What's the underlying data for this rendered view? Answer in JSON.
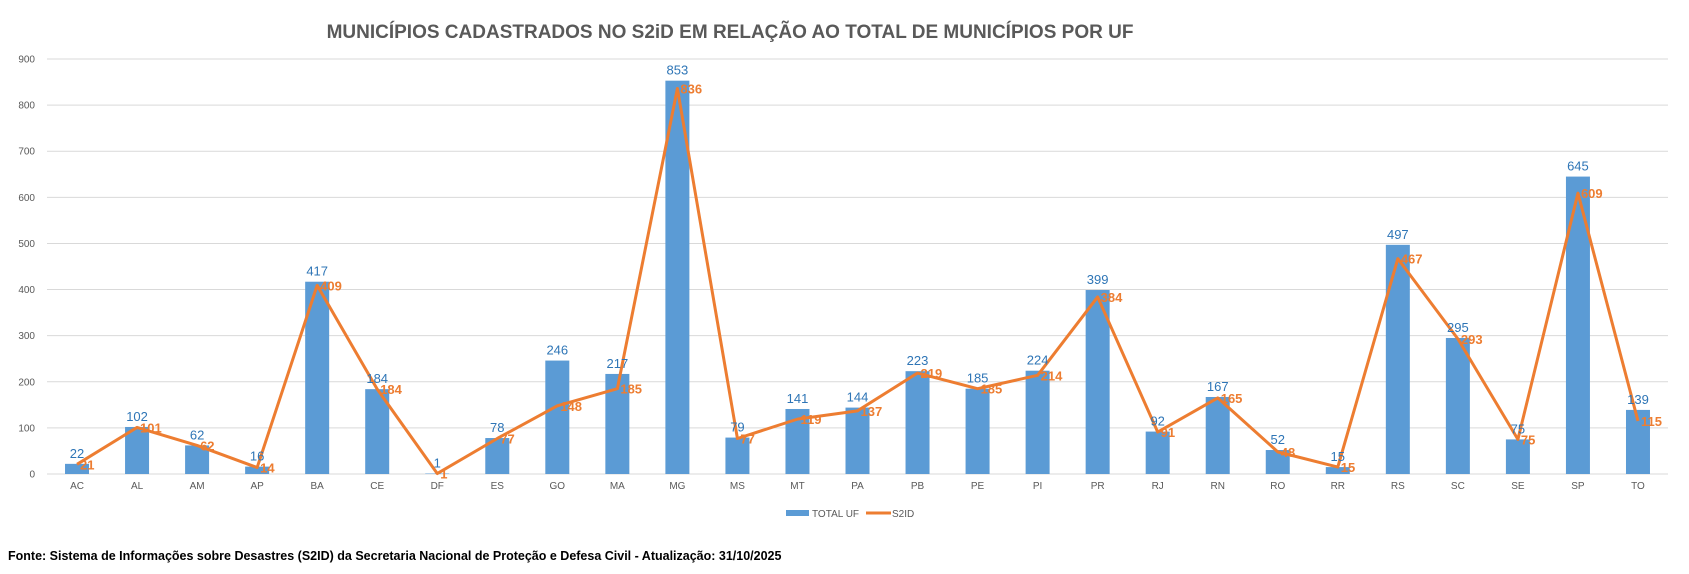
{
  "chart_data": {
    "type": "bar+line",
    "title": "MUNICÍPIOS CADASTRADOS NO S2iD EM RELAÇÃO AO TOTAL DE MUNICÍPIOS POR UF",
    "xlabel": "",
    "ylabel": "",
    "ylim": [
      0,
      900
    ],
    "yticks": [
      0,
      100,
      200,
      300,
      400,
      500,
      600,
      700,
      800,
      900
    ],
    "grid": true,
    "legend_position": "bottom",
    "categories": [
      "AC",
      "AL",
      "AM",
      "AP",
      "BA",
      "CE",
      "DF",
      "ES",
      "GO",
      "MA",
      "MG",
      "MS",
      "MT",
      "PA",
      "PB",
      "PE",
      "PI",
      "PR",
      "RJ",
      "RN",
      "RO",
      "RR",
      "RS",
      "SC",
      "SE",
      "SP",
      "TO"
    ],
    "series": [
      {
        "name": "TOTAL UF",
        "type": "bar",
        "color": "#5B9BD5",
        "label_color": "#2E75B6",
        "values": [
          22,
          102,
          62,
          16,
          417,
          184,
          1,
          78,
          246,
          217,
          853,
          79,
          141,
          144,
          223,
          185,
          224,
          399,
          92,
          167,
          52,
          15,
          497,
          295,
          75,
          645,
          139
        ]
      },
      {
        "name": "S2ID",
        "type": "line",
        "color": "#ED7D31",
        "label_color": "#ED7D31",
        "values": [
          21,
          101,
          62,
          14,
          409,
          184,
          1,
          77,
          148,
          185,
          836,
          77,
          119,
          137,
          219,
          185,
          214,
          384,
          91,
          165,
          48,
          15,
          467,
          293,
          75,
          609,
          115
        ]
      }
    ]
  },
  "footer": {
    "source": "Fonte: Sistema de Informações sobre Desastres (S2ID) da Secretaria Nacional de Proteção e Defesa Civil - Atualização: 31/10/2025"
  }
}
